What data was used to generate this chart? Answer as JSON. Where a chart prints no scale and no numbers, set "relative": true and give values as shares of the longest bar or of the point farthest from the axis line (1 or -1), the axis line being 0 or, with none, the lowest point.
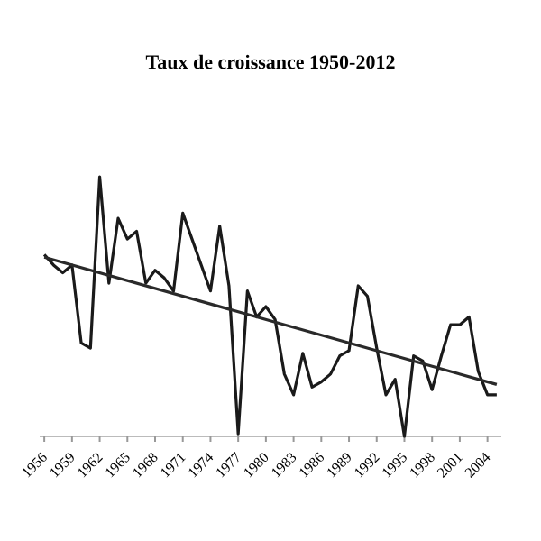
{
  "chart_data": {
    "type": "line",
    "title": "Taux de croissance 1950-2012",
    "relative": true,
    "xlim": [
      1955.5,
      2005.5
    ],
    "xticks": [
      1956,
      1959,
      1962,
      1965,
      1968,
      1971,
      1974,
      1977,
      1980,
      1983,
      1986,
      1989,
      1992,
      1995,
      1998,
      2001,
      2004
    ],
    "marker": "none",
    "line_style": "solid",
    "x": [
      1956,
      1957,
      1958,
      1959,
      1960,
      1961,
      1962,
      1963,
      1964,
      1965,
      1966,
      1967,
      1968,
      1969,
      1970,
      1971,
      1972,
      1973,
      1974,
      1975,
      1976,
      1977,
      1978,
      1979,
      1980,
      1981,
      1982,
      1983,
      1984,
      1985,
      1986,
      1987,
      1988,
      1989,
      1990,
      1991,
      1992,
      1993,
      1994,
      1995,
      1996,
      1997,
      1998,
      1999,
      2000,
      2001,
      2002,
      2003,
      2004,
      2005
    ],
    "series": [
      {
        "color": "#1a1a1a",
        "values": [
          0.7,
          0.66,
          0.63,
          0.66,
          0.36,
          0.34,
          1,
          0.59,
          0.84,
          0.76,
          0.79,
          0.59,
          0.64,
          0.61,
          0.56,
          0.86,
          0.76,
          0.66,
          0.56,
          0.81,
          0.58,
          0.01,
          0.56,
          0.46,
          0.5,
          0.45,
          0.24,
          0.16,
          0.32,
          0.19,
          0.21,
          0.24,
          0.31,
          0.33,
          0.58,
          0.54,
          0.34,
          0.16,
          0.22,
          0,
          0.31,
          0.29,
          0.18,
          0.31,
          0.43,
          0.43,
          0.46,
          0.25,
          0.16,
          0.16
        ]
      },
      {
        "color": "#2a2a2a",
        "x": [
          1956,
          2005
        ],
        "values": [
          0.69,
          0.2
        ]
      }
    ]
  }
}
